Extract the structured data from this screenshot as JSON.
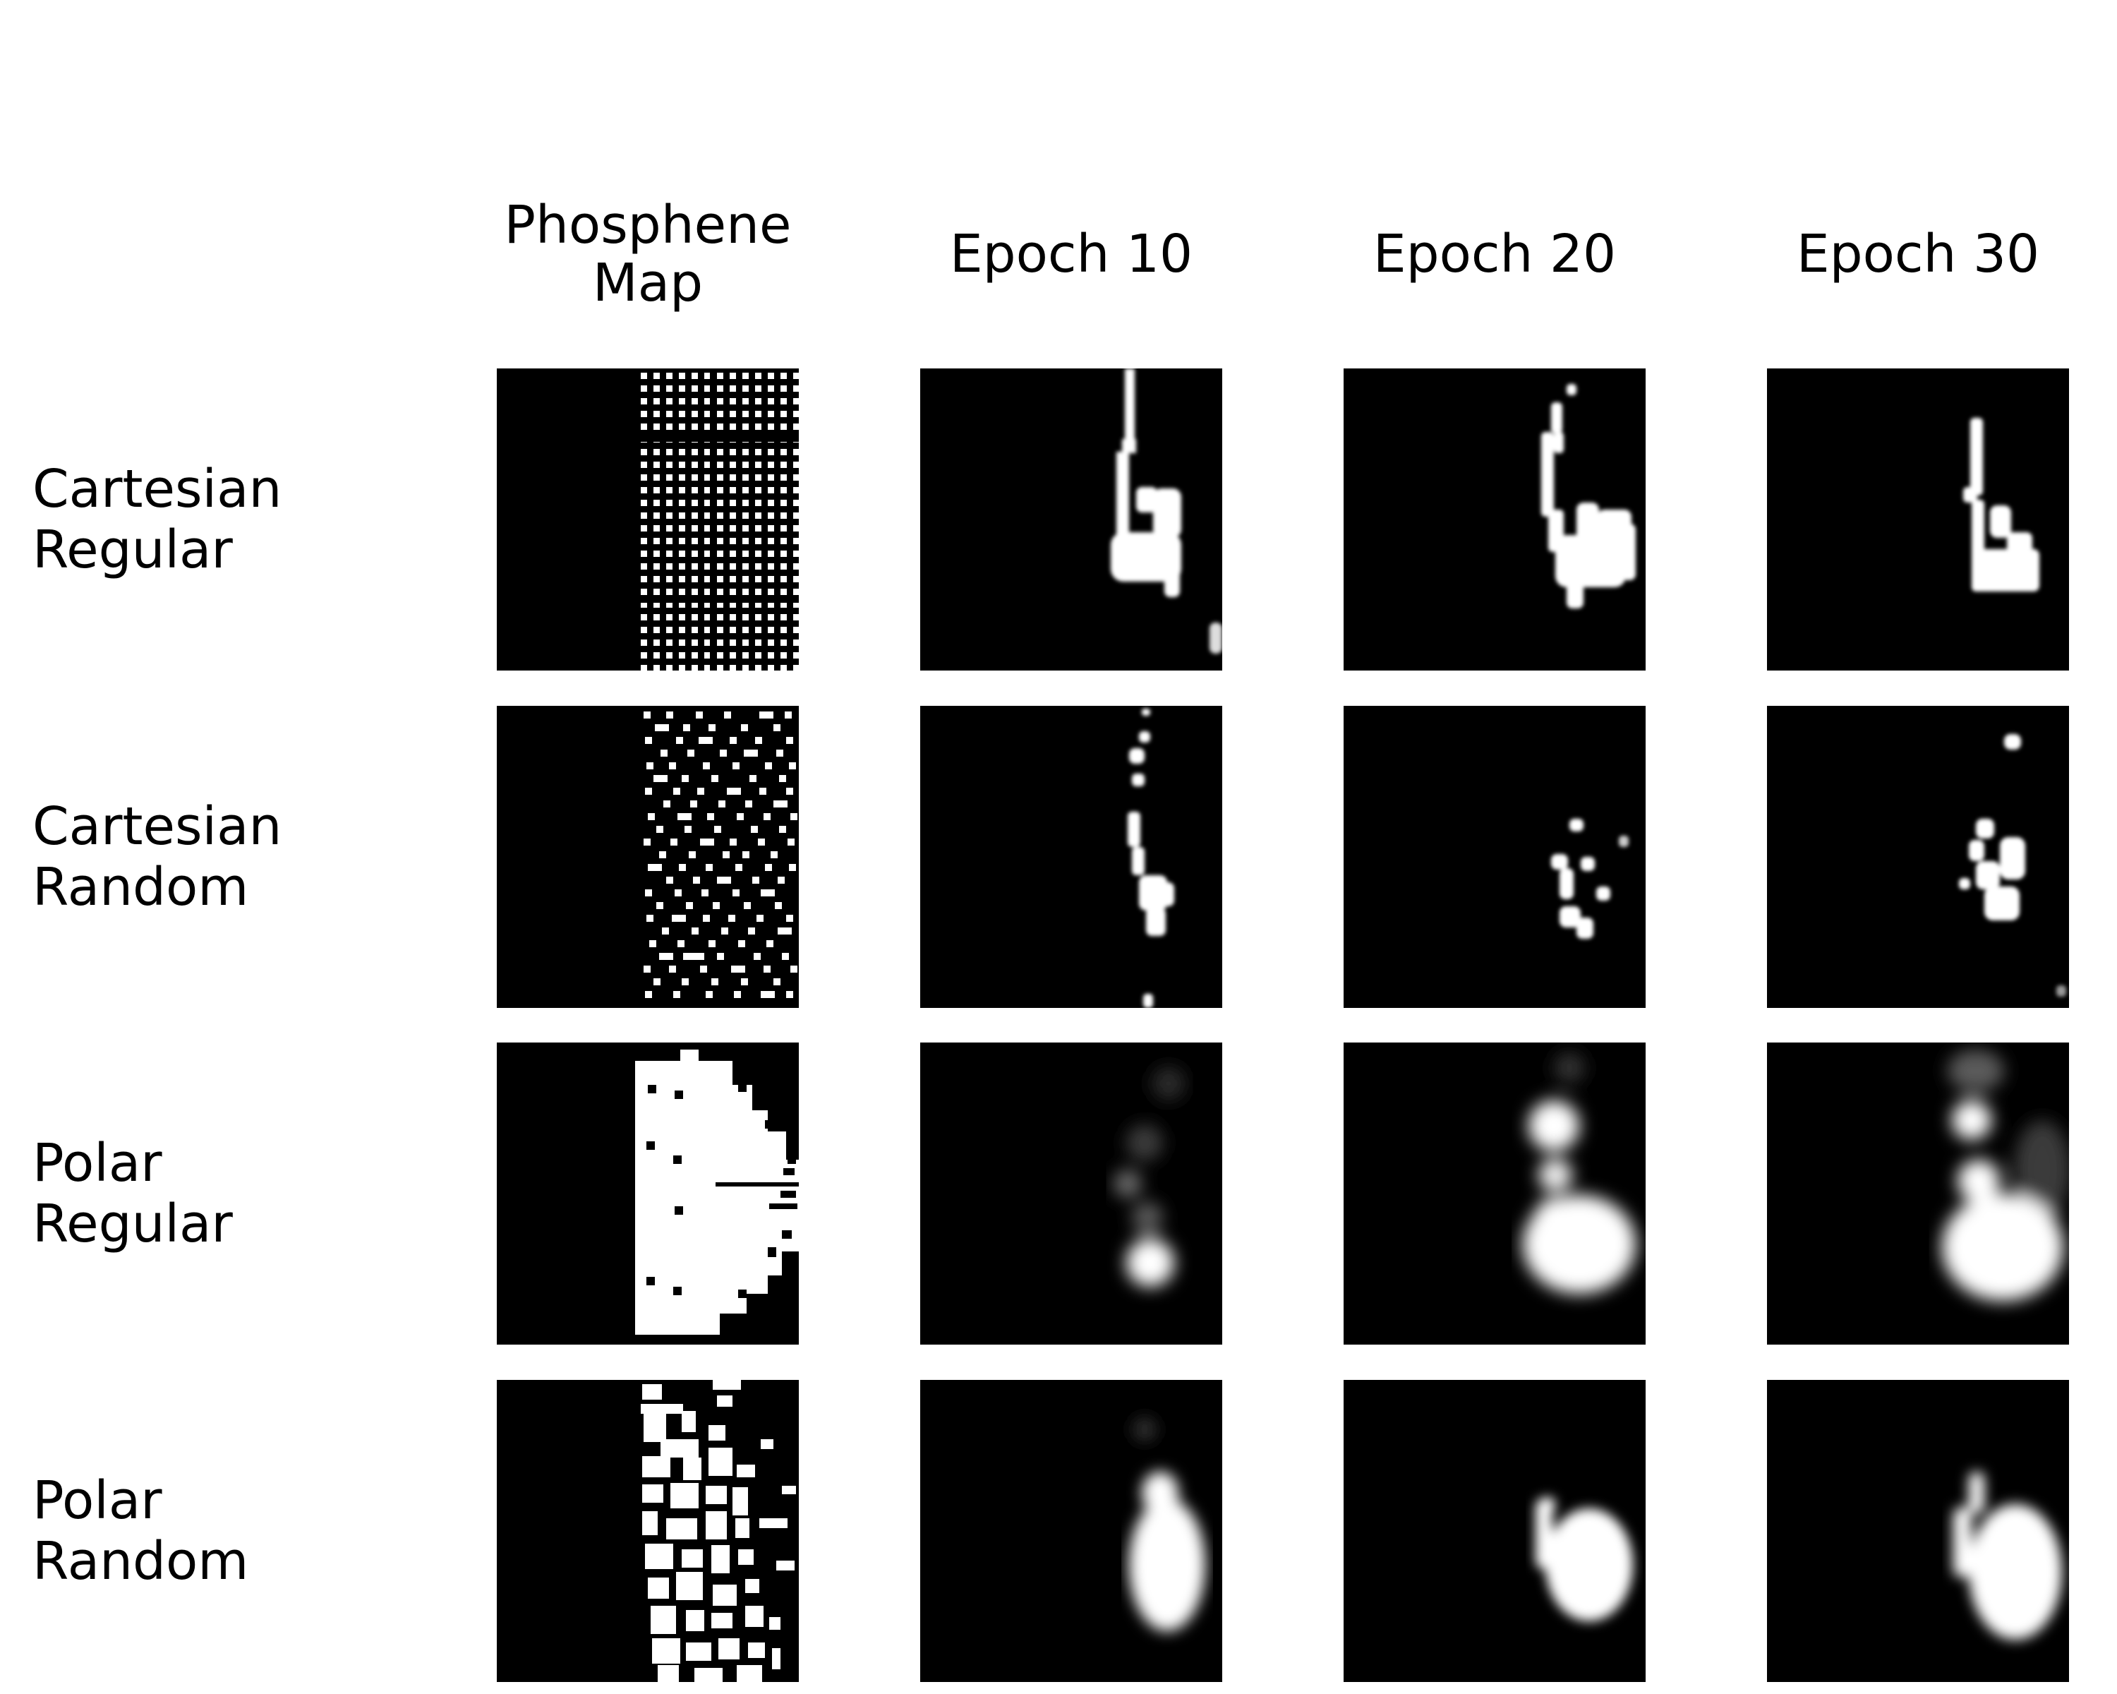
{
  "columns": [
    {
      "title": "Phosphene\nMap"
    },
    {
      "title": "Epoch 10"
    },
    {
      "title": "Epoch 20"
    },
    {
      "title": "Epoch 30"
    }
  ],
  "rows": [
    {
      "label": "Cartesian\nRegular"
    },
    {
      "label": "Cartesian\nRandom"
    },
    {
      "label": "Polar\nRegular"
    },
    {
      "label": "Polar\nRandom"
    }
  ],
  "colors": {
    "background": "#000000",
    "foreground": "#ffffff",
    "page": "#ffffff"
  }
}
